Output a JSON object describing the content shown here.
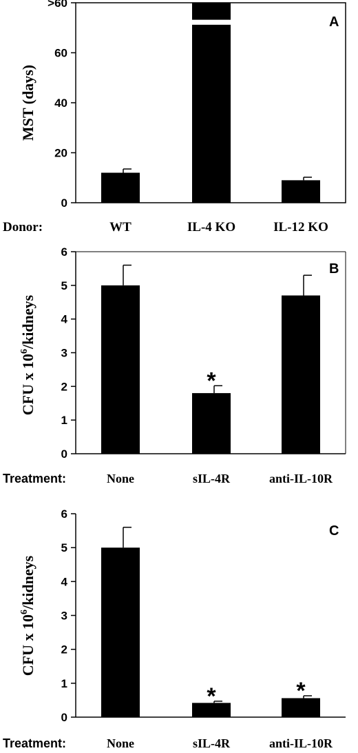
{
  "chart_data": [
    {
      "type": "bar",
      "panel_letter": "A",
      "ylabel": "MST (days)",
      "yticks": [
        "0",
        "20",
        "40",
        "60",
        ">60"
      ],
      "ylim": [
        0,
        80
      ],
      "group_label": "Donor:",
      "categories": [
        "WT",
        "IL-4 KO",
        "IL-12 KO"
      ],
      "values": [
        12,
        80,
        9
      ],
      "errors": [
        1.5,
        0,
        1.2
      ],
      "broken_bar_index": 1,
      "significance": [
        "",
        "",
        ""
      ],
      "colors": {
        "bar": "#000000"
      }
    },
    {
      "type": "bar",
      "panel_letter": "B",
      "ylabel": "CFU x 10",
      "ylabel_superscript": "6",
      "ylabel_suffix": "/kidneys",
      "yticks": [
        "0",
        "1",
        "2",
        "3",
        "4",
        "5",
        "6"
      ],
      "ylim": [
        0,
        6
      ],
      "group_label": "Treatment:",
      "categories": [
        "None",
        "sIL-4R",
        "anti-IL-10R"
      ],
      "values": [
        5.0,
        1.8,
        4.7
      ],
      "errors": [
        0.6,
        0.22,
        0.6
      ],
      "significance": [
        "",
        "*",
        ""
      ],
      "colors": {
        "bar": "#000000"
      }
    },
    {
      "type": "bar",
      "panel_letter": "C",
      "ylabel": "CFU x 10",
      "ylabel_superscript": "6",
      "ylabel_suffix": "/kidneys",
      "yticks": [
        "0",
        "1",
        "2",
        "3",
        "4",
        "5",
        "6"
      ],
      "ylim": [
        0,
        6
      ],
      "group_label": "Treatment:",
      "categories": [
        "None",
        "sIL-4R",
        "anti-IL-10R"
      ],
      "values": [
        5.0,
        0.42,
        0.56
      ],
      "errors": [
        0.6,
        0.05,
        0.07
      ],
      "significance": [
        "",
        "*",
        "*"
      ],
      "colors": {
        "bar": "#000000"
      }
    }
  ]
}
